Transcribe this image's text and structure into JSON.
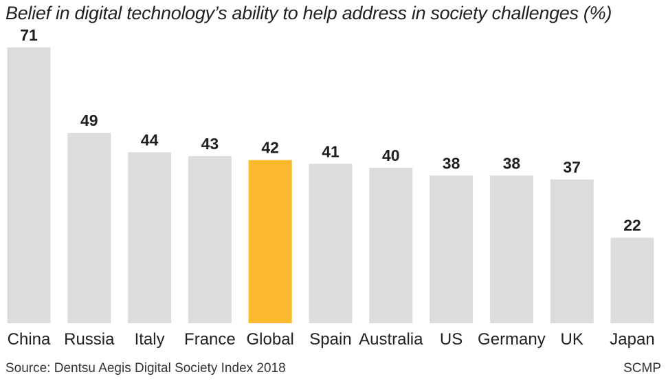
{
  "chart_data": {
    "type": "bar",
    "title": "Belief in digital technology’s ability to help address in society challenges (%)",
    "categories": [
      "China",
      "Russia",
      "Italy",
      "France",
      "Global",
      "Spain",
      "Australia",
      "US",
      "Germany",
      "UK",
      "Japan"
    ],
    "values": [
      71,
      49,
      44,
      43,
      42,
      41,
      40,
      38,
      38,
      37,
      22
    ],
    "highlight_category": "Global",
    "ylim": [
      0,
      75
    ],
    "grid": false,
    "colors": {
      "bar": "#dcdcdc",
      "highlight": "#fbb92d",
      "label": "#1f1f1f"
    }
  },
  "footer": {
    "source": "Source: Dentsu Aegis Digital Society Index 2018",
    "credit": "SCMP"
  }
}
